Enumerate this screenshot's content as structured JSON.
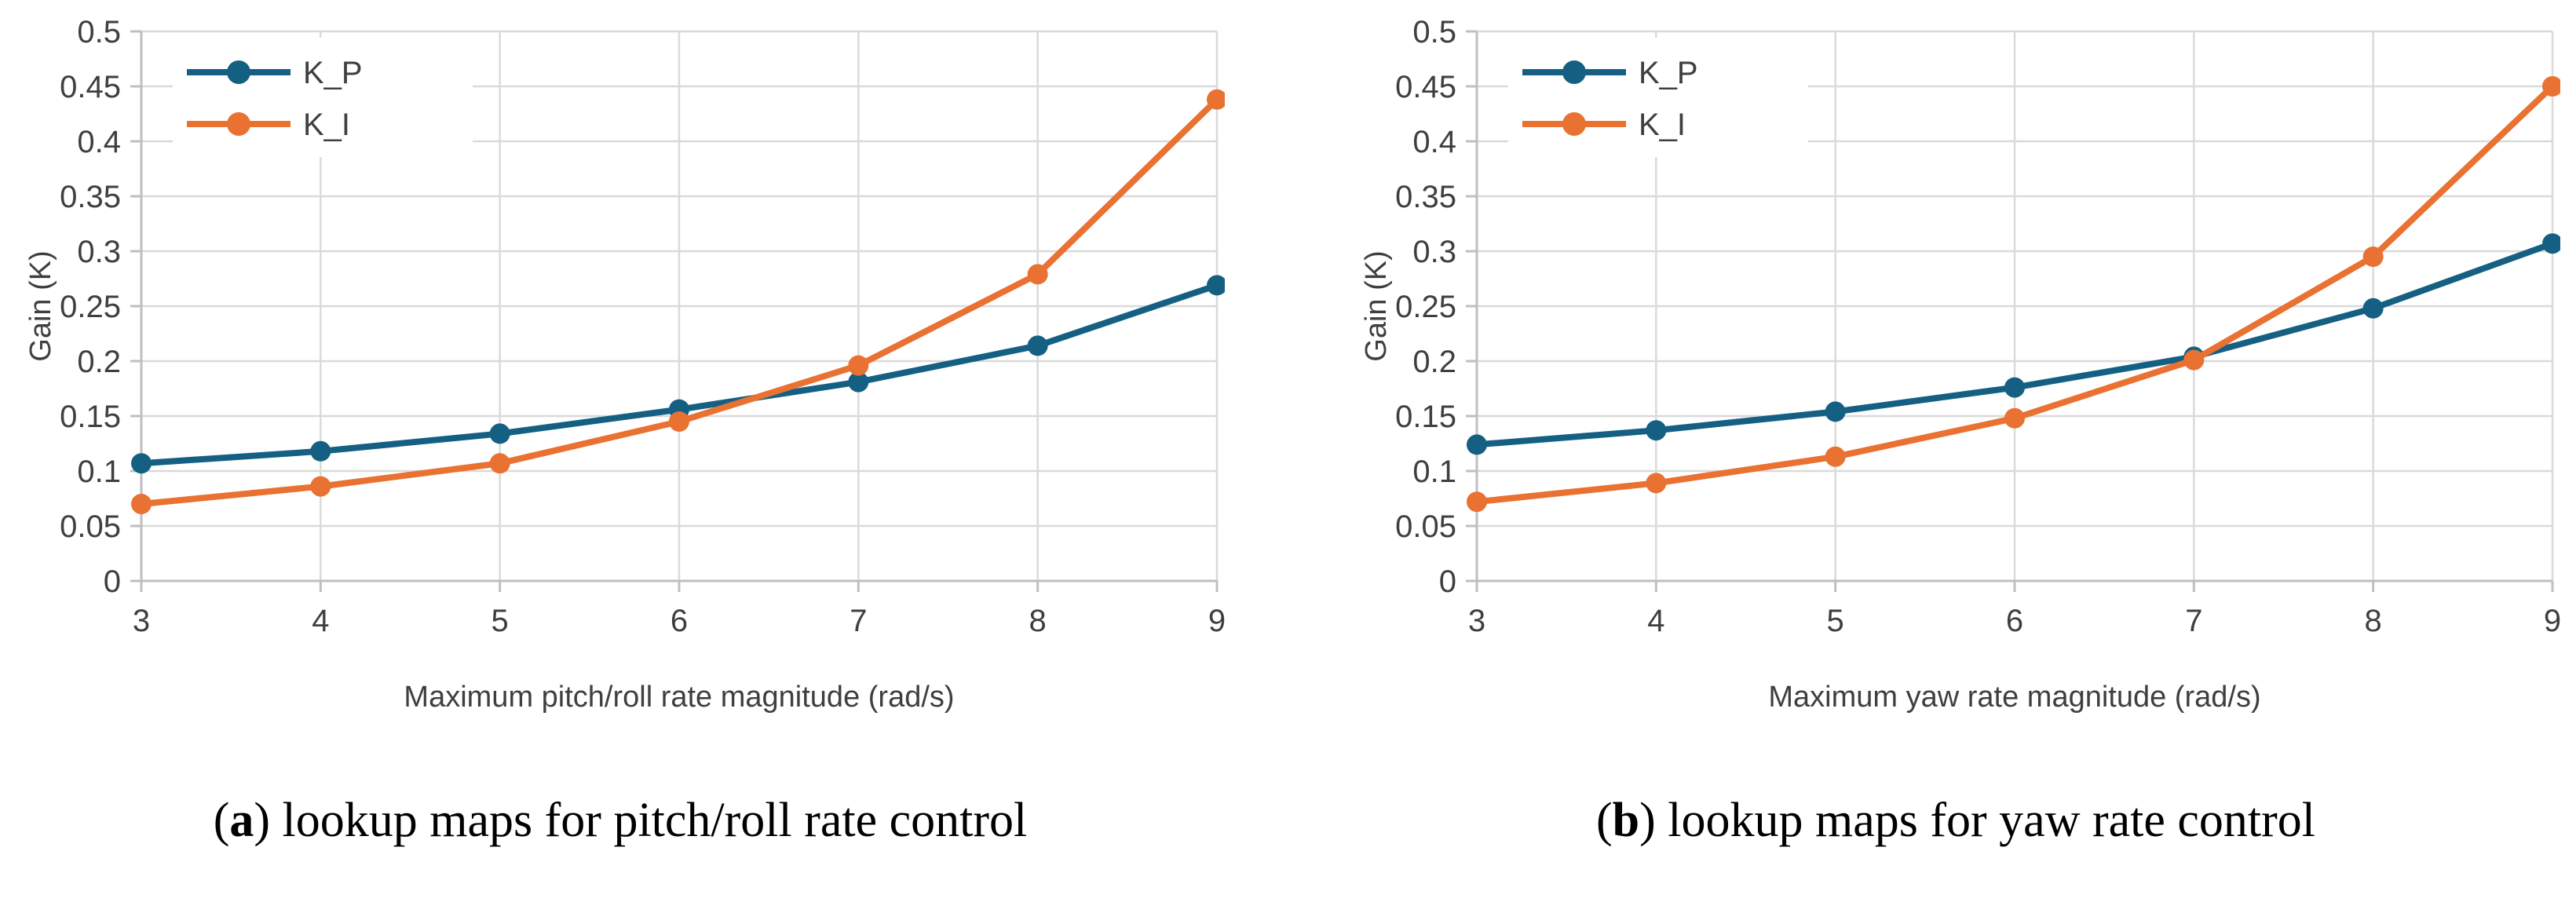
{
  "page": {
    "background": "#ffffff"
  },
  "style": {
    "gridline_color": "#dadada",
    "axis_color": "#bfbfbf",
    "tick_text_color": "#3f3f3f",
    "caption_text_color": "#000000",
    "accent_blue": "#156082",
    "accent_orange": "#E97132",
    "legend_background": "#ffffff"
  },
  "figures": [
    {
      "caption": {
        "open": "(",
        "letter": "a",
        "close": ")",
        "text": " lookup maps for pitch/roll rate control"
      }
    },
    {
      "caption": {
        "open": "(",
        "letter": "b",
        "close": ")",
        "text": " lookup maps for yaw rate control"
      }
    }
  ],
  "chart_data": [
    {
      "type": "line",
      "x": [
        3,
        4,
        5,
        6,
        7,
        8,
        9
      ],
      "xlabel": "Maximum pitch/roll rate magnitude (rad/s)",
      "ylabel": "Gain (K)",
      "ylim": [
        0,
        0.5
      ],
      "y_ticks": [
        "0",
        "0.05",
        "0.1",
        "0.15",
        "0.2",
        "0.25",
        "0.3",
        "0.35",
        "0.4",
        "0.45",
        "0.5"
      ],
      "grid": true,
      "legend_position": "top-left",
      "marker": "circle",
      "series": [
        {
          "name": "K_P",
          "color": "#156082",
          "values": [
            0.107,
            0.118,
            0.134,
            0.156,
            0.181,
            0.214,
            0.269
          ]
        },
        {
          "name": "K_I",
          "color": "#E97132",
          "values": [
            0.07,
            0.086,
            0.107,
            0.145,
            0.196,
            0.279,
            0.438
          ]
        }
      ]
    },
    {
      "type": "line",
      "x": [
        3,
        4,
        5,
        6,
        7,
        8,
        9
      ],
      "xlabel": "Maximum yaw rate magnitude (rad/s)",
      "ylabel": "Gain (K)",
      "ylim": [
        0,
        0.5
      ],
      "y_ticks": [
        "0",
        "0.05",
        "0.1",
        "0.15",
        "0.2",
        "0.25",
        "0.3",
        "0.35",
        "0.4",
        "0.45",
        "0.5"
      ],
      "grid": true,
      "legend_position": "top-left",
      "marker": "circle",
      "series": [
        {
          "name": "K_P",
          "color": "#156082",
          "values": [
            0.124,
            0.137,
            0.154,
            0.176,
            0.204,
            0.248,
            0.307
          ]
        },
        {
          "name": "K_I",
          "color": "#E97132",
          "values": [
            0.072,
            0.089,
            0.113,
            0.148,
            0.201,
            0.295,
            0.45
          ]
        }
      ]
    }
  ]
}
